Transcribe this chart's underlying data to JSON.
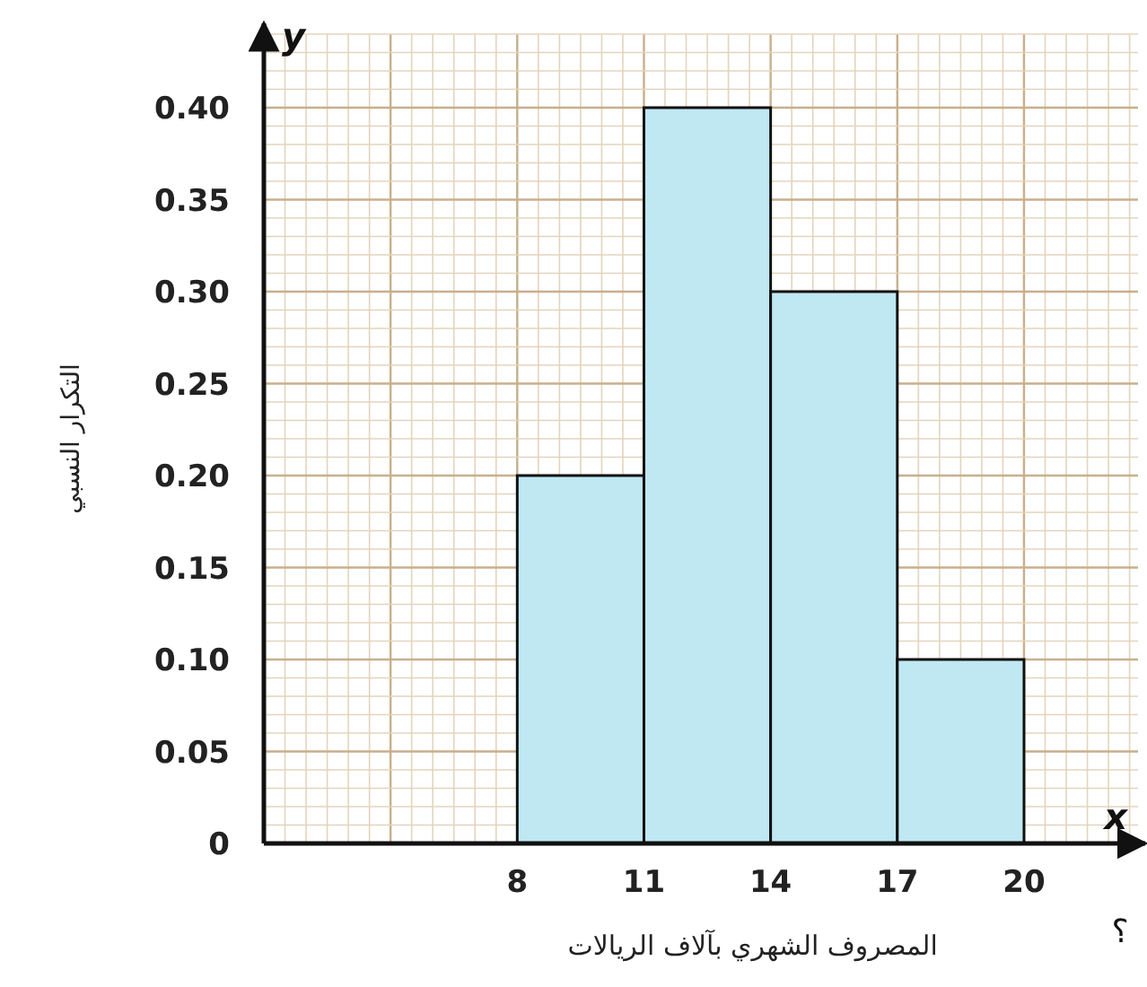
{
  "chart_data": {
    "type": "histogram",
    "xlabel": "المصروف الشهري بآلاف الريالات",
    "ylabel": "التكرار النسبي",
    "bins": [
      8,
      11,
      14,
      17,
      20
    ],
    "values": [
      0.2,
      0.4,
      0.3,
      0.1
    ],
    "color": "#bfe8f2",
    "xlim": [
      2,
      22.7
    ],
    "ylim": [
      0,
      0.44
    ],
    "xticks": [
      8,
      11,
      14,
      17,
      20
    ],
    "yticks": [
      0,
      0.05,
      {
        "value": 0.1,
        "label": "0.10"
      },
      0.15,
      {
        "value": 0.2,
        "label": "0.20"
      },
      0.25,
      {
        "value": 0.3,
        "label": "0.30"
      },
      0.35,
      {
        "value": 0.4,
        "label": "0.40"
      }
    ],
    "grid": true,
    "annotations": [
      "x",
      "y",
      "؟"
    ]
  }
}
